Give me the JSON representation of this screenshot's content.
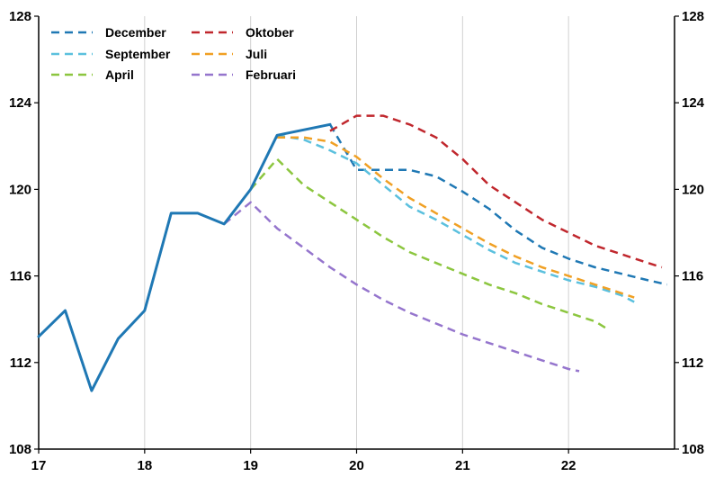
{
  "chart_data": {
    "type": "line",
    "title": "",
    "xlabel": "",
    "ylabel": "",
    "xlim": [
      17,
      23
    ],
    "ylim": [
      108,
      128
    ],
    "x_ticks": [
      17,
      18,
      19,
      20,
      21,
      22
    ],
    "y_ticks": [
      108,
      112,
      116,
      120,
      124,
      128
    ],
    "grid": "vertical",
    "legend_position": "top-left",
    "actual_series": {
      "color": "#1f78b4",
      "points": [
        [
          17.0,
          113.2
        ],
        [
          17.25,
          114.4
        ],
        [
          17.5,
          110.7
        ],
        [
          17.75,
          113.1
        ],
        [
          18.0,
          114.4
        ],
        [
          18.25,
          118.9
        ],
        [
          18.5,
          118.9
        ],
        [
          18.75,
          118.4
        ],
        [
          19.0,
          120.0
        ],
        [
          19.25,
          122.5
        ],
        [
          19.75,
          123.0
        ]
      ]
    },
    "series": [
      {
        "name": "December",
        "color": "#1f78b4",
        "points": [
          [
            19.75,
            123.0
          ],
          [
            20.0,
            120.9
          ],
          [
            20.25,
            120.9
          ],
          [
            20.5,
            120.9
          ],
          [
            20.75,
            120.6
          ],
          [
            21.0,
            119.9
          ],
          [
            21.25,
            119.1
          ],
          [
            21.5,
            118.1
          ],
          [
            21.75,
            117.3
          ],
          [
            22.0,
            116.8
          ],
          [
            22.25,
            116.4
          ],
          [
            22.5,
            116.1
          ],
          [
            22.75,
            115.8
          ],
          [
            22.93,
            115.6
          ]
        ]
      },
      {
        "name": "Oktober",
        "color": "#c0272d",
        "points": [
          [
            19.75,
            122.7
          ],
          [
            20.0,
            123.4
          ],
          [
            20.25,
            123.4
          ],
          [
            20.5,
            123.0
          ],
          [
            20.75,
            122.4
          ],
          [
            21.0,
            121.4
          ],
          [
            21.25,
            120.2
          ],
          [
            21.5,
            119.4
          ],
          [
            21.75,
            118.6
          ],
          [
            22.0,
            118.0
          ],
          [
            22.25,
            117.4
          ],
          [
            22.5,
            117.0
          ],
          [
            22.75,
            116.6
          ],
          [
            22.88,
            116.4
          ]
        ]
      },
      {
        "name": "September",
        "color": "#5bc0de",
        "points": [
          [
            19.25,
            122.5
          ],
          [
            19.5,
            122.3
          ],
          [
            19.75,
            121.8
          ],
          [
            20.0,
            121.2
          ],
          [
            20.25,
            120.2
          ],
          [
            20.5,
            119.2
          ],
          [
            20.75,
            118.6
          ],
          [
            21.0,
            117.9
          ],
          [
            21.25,
            117.2
          ],
          [
            21.5,
            116.6
          ],
          [
            21.75,
            116.2
          ],
          [
            22.0,
            115.8
          ],
          [
            22.25,
            115.5
          ],
          [
            22.5,
            115.1
          ],
          [
            22.62,
            114.8
          ]
        ]
      },
      {
        "name": "Juli",
        "color": "#f0a024",
        "points": [
          [
            19.25,
            122.4
          ],
          [
            19.5,
            122.4
          ],
          [
            19.75,
            122.2
          ],
          [
            20.0,
            121.5
          ],
          [
            20.25,
            120.5
          ],
          [
            20.5,
            119.6
          ],
          [
            20.75,
            118.9
          ],
          [
            21.0,
            118.2
          ],
          [
            21.25,
            117.5
          ],
          [
            21.5,
            116.9
          ],
          [
            21.75,
            116.4
          ],
          [
            22.0,
            116.0
          ],
          [
            22.25,
            115.6
          ],
          [
            22.5,
            115.2
          ],
          [
            22.62,
            115.0
          ]
        ]
      },
      {
        "name": "April",
        "color": "#8cc63f",
        "points": [
          [
            19.0,
            120.0
          ],
          [
            19.25,
            121.4
          ],
          [
            19.5,
            120.2
          ],
          [
            19.75,
            119.4
          ],
          [
            20.0,
            118.6
          ],
          [
            20.25,
            117.8
          ],
          [
            20.5,
            117.1
          ],
          [
            20.75,
            116.6
          ],
          [
            21.0,
            116.1
          ],
          [
            21.25,
            115.6
          ],
          [
            21.5,
            115.2
          ],
          [
            21.75,
            114.7
          ],
          [
            22.0,
            114.3
          ],
          [
            22.25,
            113.9
          ],
          [
            22.35,
            113.6
          ]
        ]
      },
      {
        "name": "Februari",
        "color": "#9575cd",
        "points": [
          [
            18.75,
            118.4
          ],
          [
            19.0,
            119.4
          ],
          [
            19.25,
            118.2
          ],
          [
            19.5,
            117.3
          ],
          [
            19.75,
            116.4
          ],
          [
            20.0,
            115.6
          ],
          [
            20.25,
            114.9
          ],
          [
            20.5,
            114.3
          ],
          [
            20.75,
            113.8
          ],
          [
            21.0,
            113.3
          ],
          [
            21.25,
            112.9
          ],
          [
            21.5,
            112.5
          ],
          [
            21.75,
            112.1
          ],
          [
            22.0,
            111.7
          ],
          [
            22.1,
            111.6
          ]
        ]
      }
    ]
  }
}
